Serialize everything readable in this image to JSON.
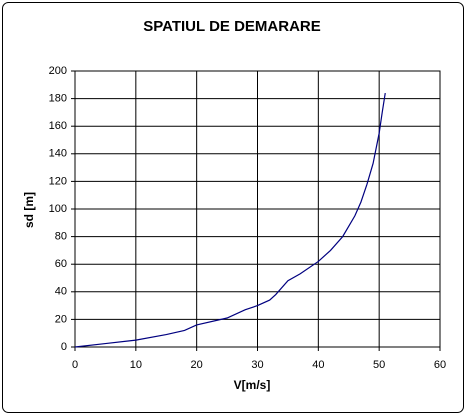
{
  "chart_data": {
    "type": "line",
    "title": "SPATIUL DE DEMARARE",
    "x_label": "V[m/s]",
    "y_label": "sd [m]",
    "x": [
      0,
      5,
      10,
      15,
      18,
      20,
      25,
      28,
      30,
      32,
      33,
      35,
      37,
      40,
      42,
      44,
      46,
      47,
      48,
      49,
      50,
      50.5,
      51
    ],
    "values": [
      0,
      2.5,
      5,
      9,
      12,
      16,
      21,
      27,
      30,
      34,
      38,
      48,
      53,
      62,
      70,
      80,
      95,
      105,
      118,
      133,
      155,
      170,
      184
    ],
    "color": "#000080",
    "xlim": [
      0,
      60
    ],
    "xticks": [
      0,
      10,
      20,
      30,
      40,
      50,
      60
    ],
    "ylim": [
      0,
      200
    ],
    "yticks": [
      0,
      20,
      40,
      60,
      80,
      100,
      120,
      140,
      160,
      180,
      200
    ],
    "grid": true
  }
}
